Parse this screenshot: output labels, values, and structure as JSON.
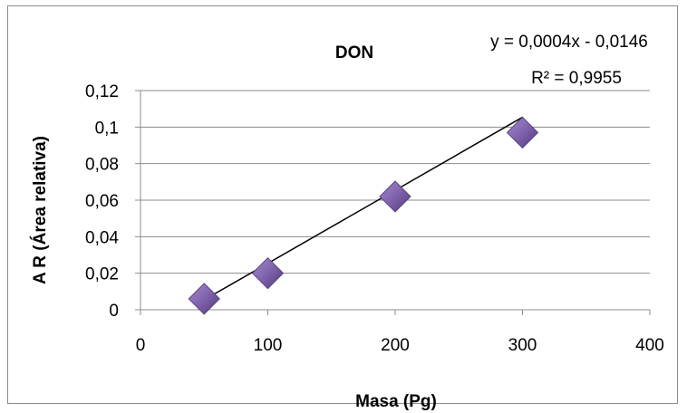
{
  "chart_data": {
    "type": "scatter",
    "title": "DON",
    "xlabel": "Masa (Pg)",
    "ylabel": "A R (Área relativa)",
    "xlim": [
      0,
      400
    ],
    "ylim": [
      0,
      0.12
    ],
    "x_ticks": [
      "0",
      "100",
      "200",
      "300",
      "400"
    ],
    "y_ticks": [
      "0",
      "0,02",
      "0,04",
      "0,06",
      "0,08",
      "0,1",
      "0,12"
    ],
    "x_tick_values": [
      0,
      100,
      200,
      300,
      400
    ],
    "y_tick_values": [
      0,
      0.02,
      0.04,
      0.06,
      0.08,
      0.1,
      0.12
    ],
    "grid": "horizontal",
    "legend": "none",
    "series": [
      {
        "points": [
          {
            "x": 50,
            "y": 0.006
          },
          {
            "x": 100,
            "y": 0.02
          },
          {
            "x": 200,
            "y": 0.062
          },
          {
            "x": 300,
            "y": 0.097
          }
        ],
        "color": "#7b5ea7"
      }
    ],
    "trendline": {
      "type": "linear",
      "slope": 0.0004,
      "intercept": -0.0146,
      "x_range": [
        50,
        300
      ],
      "equation": "y = 0,0004x - 0,0146",
      "r_squared": "R² = 0,9955",
      "color": "#000000"
    }
  }
}
